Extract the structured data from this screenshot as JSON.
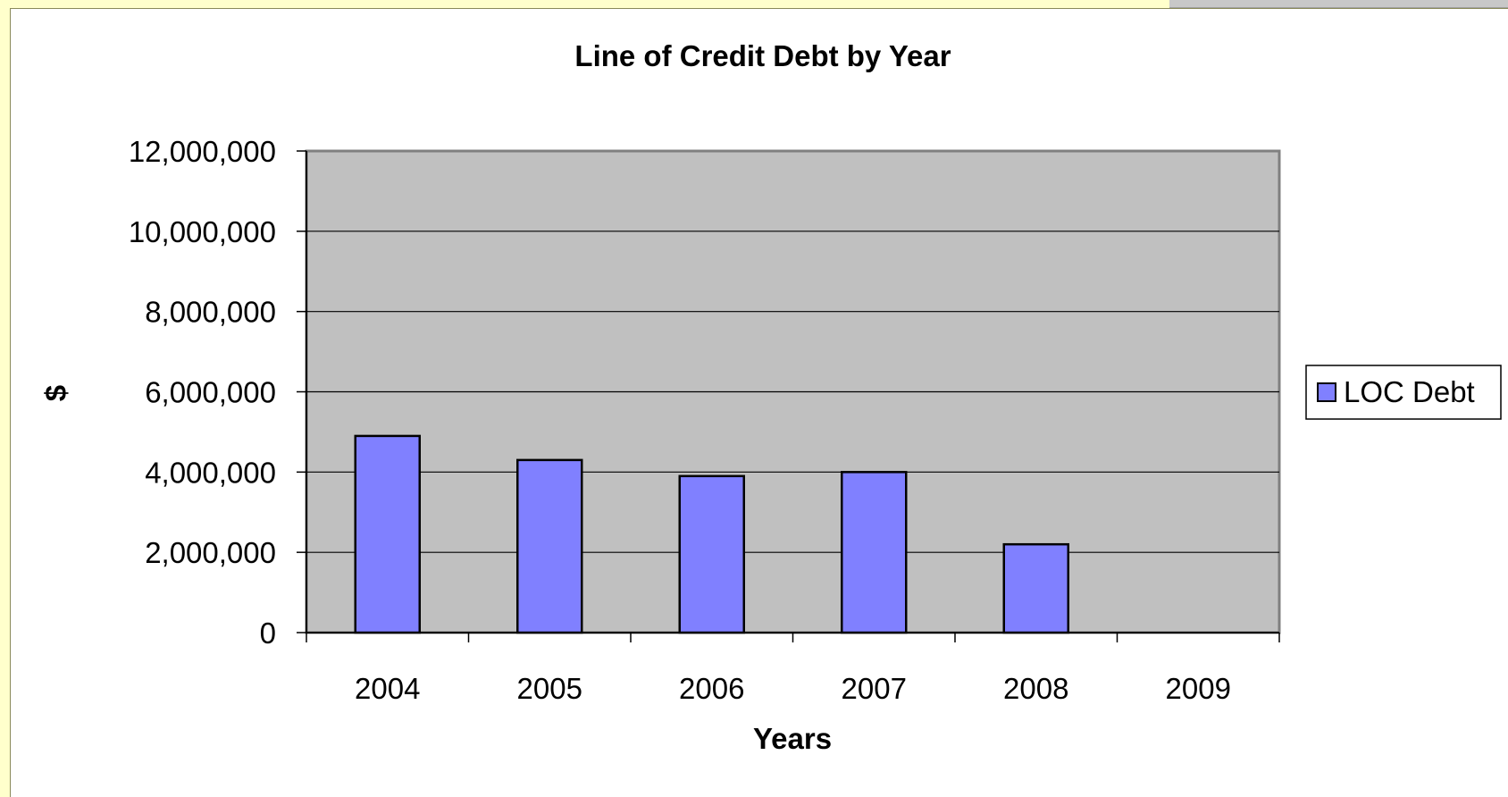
{
  "chart_data": {
    "type": "bar",
    "title": "Line of Credit Debt by Year",
    "xlabel": "Years",
    "ylabel": "$",
    "categories": [
      "2004",
      "2005",
      "2006",
      "2007",
      "2008",
      "2009"
    ],
    "series": [
      {
        "name": "LOC Debt",
        "values": [
          4900000,
          4300000,
          3900000,
          4000000,
          2200000,
          0
        ],
        "color": "#8080ff"
      }
    ],
    "ylim": [
      0,
      12000000
    ],
    "yticks": [
      "0",
      "2,000,000",
      "4,000,000",
      "6,000,000",
      "8,000,000",
      "10,000,000",
      "12,000,000"
    ],
    "grid": true,
    "plot_background": "#c0c0c0",
    "legend_position": "right"
  }
}
